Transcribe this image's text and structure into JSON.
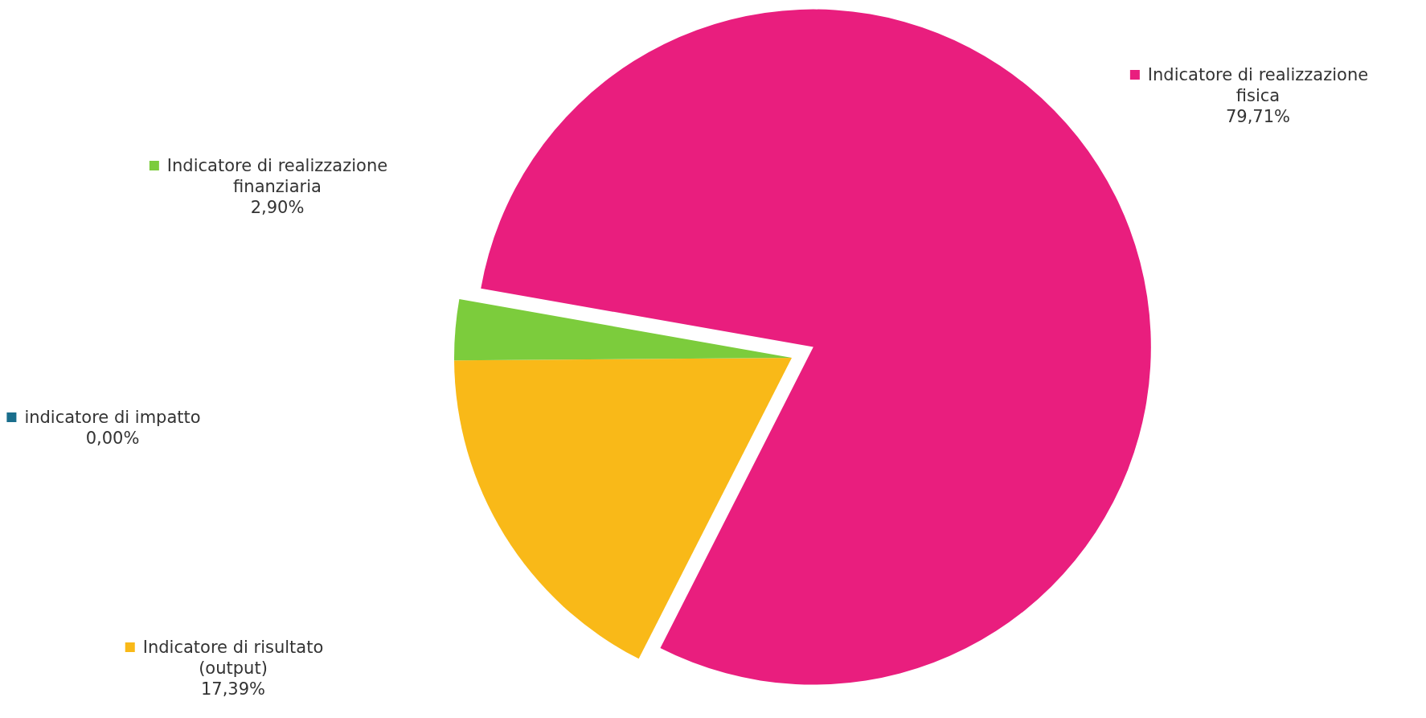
{
  "chart_data": {
    "type": "pie",
    "categories": [
      "Indicatore di realizzazione fisica",
      "Indicatore di risultato (output)",
      "indicatore di impatto",
      "Indicatore di realizzazione finanziaria"
    ],
    "values": [
      79.71,
      17.39,
      0.0,
      2.9
    ],
    "value_labels": [
      "79,71%",
      "17,39%",
      "0,00%",
      "2,90%"
    ],
    "colors": [
      "#e91e7e",
      "#f9b918",
      "#1a6e8c",
      "#7ccc3c"
    ],
    "legend": "left"
  }
}
